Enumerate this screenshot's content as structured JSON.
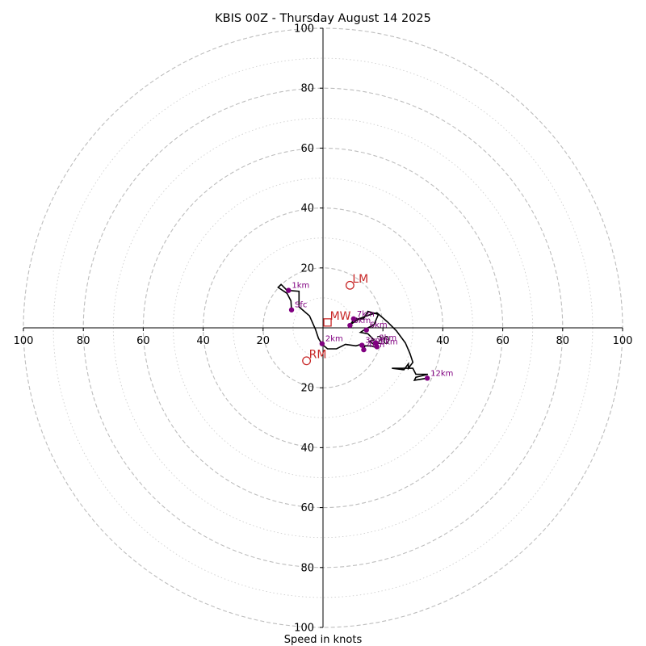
{
  "chart_data": {
    "type": "scatter",
    "title": "KBIS 00Z - Thursday August 14 2025",
    "xlabel": "Speed in knots",
    "ylabel": "",
    "xlim": [
      -100,
      100
    ],
    "ylim": [
      -100,
      100
    ],
    "ring_major": [
      20,
      40,
      60,
      80,
      100
    ],
    "ring_minor": [
      10,
      30,
      50,
      70,
      90
    ],
    "tick_labels": {
      "left": [
        "100",
        "80",
        "60",
        "40",
        "20"
      ],
      "right": [
        "20",
        "40",
        "60",
        "80",
        "100"
      ],
      "top": [
        "20",
        "40",
        "60",
        "80",
        "100"
      ],
      "bottom": [
        "20",
        "40",
        "60",
        "80",
        "100"
      ]
    },
    "colors": {
      "trace": "#000000",
      "height_markers": "#800080",
      "storm_motion": "#c82828",
      "grid": "#bdbdbd"
    },
    "hodograph_uv": [
      [
        -10.5,
        6.0
      ],
      [
        -10.7,
        9.0
      ],
      [
        -12.0,
        11.5
      ],
      [
        -15.0,
        13.5
      ],
      [
        -14.0,
        14.5
      ],
      [
        -12.0,
        12.5
      ],
      [
        -8.0,
        12.2
      ],
      [
        -8.0,
        7.0
      ],
      [
        -4.5,
        4.0
      ],
      [
        -2.5,
        -0.5
      ],
      [
        -1.5,
        -3.5
      ],
      [
        -0.3,
        -5.5
      ],
      [
        1.5,
        -7.0
      ],
      [
        4.5,
        -7.0
      ],
      [
        7.5,
        -5.5
      ],
      [
        11.0,
        -6.0
      ],
      [
        12.8,
        -5.5
      ],
      [
        13.5,
        -7.5
      ],
      [
        14.0,
        -6.0
      ],
      [
        16.0,
        -6.0
      ],
      [
        17.5,
        -6.5
      ],
      [
        18.0,
        -5.0
      ],
      [
        17.0,
        -5.5
      ],
      [
        15.5,
        -4.5
      ],
      [
        17.0,
        -4.0
      ],
      [
        15.0,
        -2.0
      ],
      [
        12.5,
        -1.5
      ],
      [
        14.0,
        -0.5
      ],
      [
        15.0,
        0.0
      ],
      [
        17.0,
        1.0
      ],
      [
        18.5,
        4.5
      ],
      [
        15.0,
        5.5
      ],
      [
        13.5,
        3.0
      ],
      [
        10.5,
        3.0
      ],
      [
        9.0,
        1.0
      ],
      [
        12.0,
        3.0
      ],
      [
        16.0,
        4.5
      ],
      [
        18.0,
        5.0
      ],
      [
        21.5,
        2.0
      ],
      [
        24.5,
        -1.0
      ],
      [
        27.5,
        -5.0
      ],
      [
        29.0,
        -8.5
      ],
      [
        30.0,
        -11.5
      ],
      [
        28.5,
        -13.5
      ],
      [
        28.5,
        -12.0
      ],
      [
        27.0,
        -14.0
      ],
      [
        23.0,
        -13.5
      ],
      [
        30.0,
        -13.5
      ],
      [
        31.0,
        -15.5
      ],
      [
        35.0,
        -15.5
      ],
      [
        31.0,
        -16.5
      ],
      [
        30.5,
        -17.5
      ],
      [
        34.8,
        -16.8
      ]
    ],
    "height_points": [
      {
        "label": "Sfc",
        "u": -10.5,
        "v": 6.0
      },
      {
        "label": "1km",
        "u": -11.5,
        "v": 12.5
      },
      {
        "label": "2km",
        "u": -0.3,
        "v": -5.3
      },
      {
        "label": "3km",
        "u": 13.0,
        "v": -5.8
      },
      {
        "label": "4km",
        "u": 13.6,
        "v": -7.3
      },
      {
        "label": "5km",
        "u": 18.0,
        "v": -6.3
      },
      {
        "label": "6km",
        "u": 14.5,
        "v": -0.7
      },
      {
        "label": "7km",
        "u": 10.2,
        "v": 3.0
      },
      {
        "label": "8km",
        "u": 9.0,
        "v": 0.8
      },
      {
        "label": "9km",
        "u": 17.6,
        "v": -5.0
      },
      {
        "label": "12km",
        "u": 34.8,
        "v": -16.8
      }
    ],
    "storm_motion": [
      {
        "label": "LM",
        "u": 9.0,
        "v": 14.2,
        "marker": "circle"
      },
      {
        "label": "MW",
        "u": 1.5,
        "v": 1.8,
        "marker": "square"
      },
      {
        "label": "RM",
        "u": -5.5,
        "v": -11.0,
        "marker": "circle"
      }
    ]
  }
}
